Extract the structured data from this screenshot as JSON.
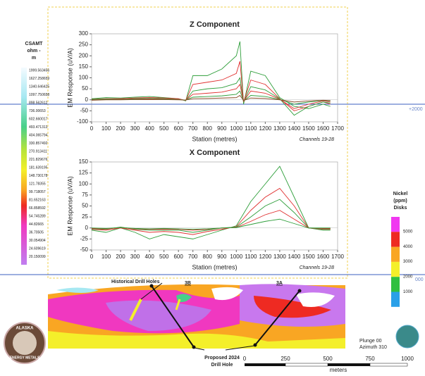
{
  "chart_data": [
    {
      "type": "line",
      "title": "Z Component",
      "ylabel": "EM Response (uV/A)",
      "xlabel": "Station (metres)",
      "annotation": "Channels 19-28",
      "x": [
        0,
        100,
        200,
        300,
        400,
        500,
        600,
        650,
        700,
        800,
        900,
        1000,
        1025,
        1050,
        1100,
        1200,
        1300,
        1400,
        1500,
        1600,
        1650
      ],
      "xlim": [
        0,
        1700
      ],
      "xticks": [
        0,
        100,
        200,
        300,
        400,
        500,
        600,
        700,
        800,
        900,
        1000,
        1100,
        1200,
        1300,
        1400,
        1500,
        1600,
        1700
      ],
      "ylim": [
        -100,
        300
      ],
      "yticks": [
        -100,
        -50,
        0,
        50,
        100,
        150,
        200,
        250,
        300
      ],
      "series": [
        {
          "color": "#2e9e3a",
          "values": [
            5,
            10,
            8,
            12,
            15,
            10,
            5,
            -5,
            110,
            110,
            140,
            200,
            265,
            -20,
            130,
            110,
            10,
            -30,
            -40,
            -20,
            -30
          ]
        },
        {
          "color": "#e03030",
          "values": [
            3,
            5,
            5,
            8,
            10,
            8,
            5,
            -3,
            70,
            80,
            90,
            120,
            175,
            -10,
            90,
            70,
            5,
            -50,
            -30,
            -10,
            -20
          ]
        },
        {
          "color": "#2e9e3a",
          "values": [
            2,
            4,
            3,
            5,
            6,
            5,
            3,
            -3,
            40,
            50,
            55,
            75,
            100,
            -10,
            60,
            45,
            5,
            -70,
            -30,
            -10,
            -15
          ]
        },
        {
          "color": "#e03030",
          "values": [
            1,
            2,
            2,
            3,
            4,
            3,
            2,
            -2,
            25,
            30,
            35,
            50,
            70,
            -8,
            40,
            30,
            3,
            -40,
            -20,
            -5,
            -10
          ]
        },
        {
          "color": "#2e9e3a",
          "values": [
            0,
            1,
            1,
            2,
            2,
            2,
            1,
            -1,
            12,
            15,
            18,
            25,
            40,
            -5,
            20,
            15,
            2,
            -20,
            -10,
            -3,
            -5
          ]
        },
        {
          "color": "#8a4b2a",
          "values": [
            -2,
            0,
            0,
            1,
            1,
            1,
            0,
            -1,
            5,
            6,
            8,
            10,
            20,
            -3,
            8,
            6,
            0,
            -10,
            -5,
            -2,
            -3
          ]
        }
      ]
    },
    {
      "type": "line",
      "title": "X Component",
      "ylabel": "EM Response (uV/A)",
      "xlabel": "Station (metres)",
      "annotation": "Channels 19-28",
      "x": [
        0,
        100,
        200,
        300,
        400,
        500,
        600,
        700,
        800,
        900,
        1000,
        1100,
        1200,
        1300,
        1400,
        1500,
        1600,
        1650
      ],
      "xlim": [
        0,
        1700
      ],
      "xticks": [
        0,
        100,
        200,
        300,
        400,
        500,
        600,
        700,
        800,
        900,
        1000,
        1100,
        1200,
        1300,
        1400,
        1500,
        1600,
        1700
      ],
      "ylim": [
        -50,
        150
      ],
      "yticks": [
        -50,
        -25,
        0,
        25,
        50,
        75,
        100,
        125,
        150
      ],
      "series": [
        {
          "color": "#2e9e3a",
          "values": [
            -5,
            -10,
            0,
            -10,
            -25,
            -15,
            -20,
            -25,
            -15,
            -5,
            5,
            60,
            100,
            140,
            70,
            0,
            -5,
            -5
          ]
        },
        {
          "color": "#e03030",
          "values": [
            -3,
            -5,
            0,
            -5,
            -10,
            -8,
            -10,
            -15,
            -8,
            -3,
            3,
            40,
            70,
            90,
            50,
            0,
            -3,
            -3
          ]
        },
        {
          "color": "#2e9e3a",
          "values": [
            -2,
            -3,
            2,
            -3,
            -5,
            -5,
            -5,
            -10,
            -5,
            0,
            2,
            25,
            50,
            65,
            35,
            0,
            -2,
            -2
          ]
        },
        {
          "color": "#e03030",
          "values": [
            -1,
            -2,
            1,
            -2,
            -3,
            -3,
            -3,
            -5,
            -3,
            0,
            1,
            15,
            30,
            40,
            20,
            0,
            -1,
            -1
          ]
        },
        {
          "color": "#2e9e3a",
          "values": [
            0,
            -1,
            1,
            -1,
            -2,
            -1,
            -2,
            -3,
            -2,
            0,
            1,
            8,
            15,
            20,
            10,
            0,
            0,
            0
          ]
        }
      ]
    }
  ],
  "csamt_legend": {
    "title_lines": [
      "CSAMT",
      "ohm -",
      "m"
    ],
    "labels": [
      "1999.563456",
      "1627.258659",
      "1340.646425",
      "1097.750658",
      "898.562612",
      "736.00653",
      "602.660017",
      "493.471313",
      "404.065794",
      "330.857492",
      "270.913411",
      "221.829676",
      "181.639195",
      "148.730178",
      "121.78355",
      "99.718057",
      "81.652163",
      "66.858592",
      "54.745289",
      "44.82665",
      "36.70505",
      "30.054904",
      "24.609619",
      "20.150099"
    ]
  },
  "nickel_legend": {
    "title_lines": [
      "Nickel",
      "(ppm)",
      "Disks"
    ],
    "labels": [
      "5000",
      "4000",
      "3000",
      "2000",
      "1000"
    ]
  },
  "section": {
    "historical": "Historical Drill Holes",
    "target_b": "3B",
    "target_a": "3A",
    "proposed_lines": [
      "Proposed 2024",
      "Drill Hole"
    ],
    "plunge": "Plunge 00",
    "azimuth": "Azimuth 310",
    "elevation_left": "+2000",
    "elevation_right": "000",
    "scale_labels": [
      "0",
      "250",
      "500",
      "750",
      "1000"
    ],
    "scale_unit": "meters",
    "logo_top": "ALASKA",
    "logo_bottom": "ENERGY METALS"
  }
}
